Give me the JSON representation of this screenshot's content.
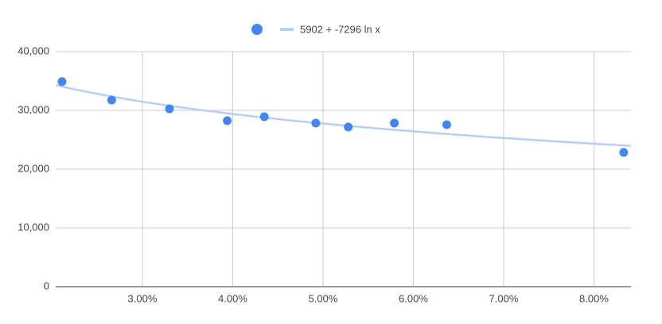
{
  "chart_data": {
    "type": "scatter",
    "series": [
      {
        "color": "#4285f4",
        "x": [
          0.0211,
          0.0266,
          0.033,
          0.0394,
          0.0435,
          0.0492,
          0.0528,
          0.0579,
          0.0637,
          0.0833
        ],
        "values": [
          34900,
          31760,
          30270,
          28240,
          28920,
          27840,
          27160,
          27840,
          27570,
          22840
        ]
      }
    ],
    "trendline": {
      "label": "5902 + -7296 ln x",
      "intercept": 5902,
      "slope": -7296,
      "color": "#b6cff6"
    },
    "xlim": [
      0.0204,
      0.0841
    ],
    "xticks": [
      {
        "value": 0.03,
        "label": "3.00%"
      },
      {
        "value": 0.04,
        "label": "4.00%"
      },
      {
        "value": 0.05,
        "label": "5.00%"
      },
      {
        "value": 0.06,
        "label": "6.00%"
      },
      {
        "value": 0.07,
        "label": "7.00%"
      },
      {
        "value": 0.08,
        "label": "8.00%"
      }
    ],
    "ylim": [
      0,
      40000
    ],
    "yticks": [
      0,
      {
        "value": 10000,
        "label": "10,000"
      },
      {
        "value": 20000,
        "label": "20,000"
      },
      {
        "value": 30000,
        "label": "30,000"
      },
      {
        "value": 40000,
        "label": "40,000"
      }
    ],
    "grid": true
  }
}
